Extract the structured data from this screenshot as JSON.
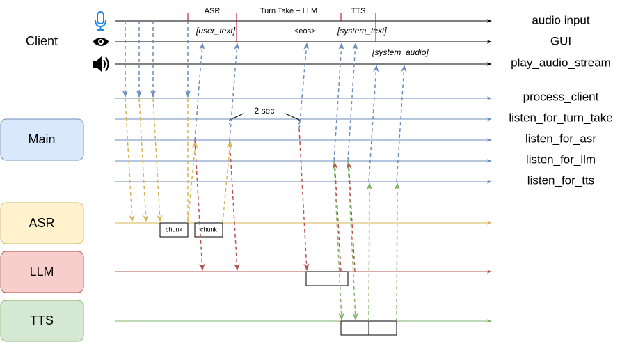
{
  "client_label": "Client",
  "boxes": [
    {
      "id": "main",
      "label": "Main",
      "fill": "#dae8fc",
      "stroke": "#6c8ebf"
    },
    {
      "id": "asr",
      "label": "ASR",
      "fill": "#fff2cc",
      "stroke": "#d6b656"
    },
    {
      "id": "llm",
      "label": "LLM",
      "fill": "#f8cecc",
      "stroke": "#b85450"
    },
    {
      "id": "tts",
      "label": "TTS",
      "fill": "#d5e8d4",
      "stroke": "#82b366"
    }
  ],
  "client_lines": [
    {
      "label": "audio input",
      "icon": "microphone-icon"
    },
    {
      "label": "GUI",
      "icon": "eye-icon"
    },
    {
      "label": "play_audio_stream",
      "icon": "speaker-icon"
    }
  ],
  "main_lines": [
    {
      "label": "process_client"
    },
    {
      "label": "listen_for_turn_take"
    },
    {
      "label": "listen_for_asr"
    },
    {
      "label": "listen_for_llm"
    },
    {
      "label": "listen_for_tts"
    }
  ],
  "phase_labels": {
    "asr": "ASR",
    "turn_take_llm": "Turn Take + LLM",
    "tts": "TTS"
  },
  "annotations": {
    "user_text": "[user_text]",
    "eos": "<eos>",
    "system_text": "[system_text]",
    "system_audio": "[system_audio]",
    "two_sec": "2 sec"
  },
  "chunk_labels": [
    "chunk",
    "chunk"
  ],
  "colors": {
    "blue": "#6c8ebf",
    "yellow": "#d6b656",
    "red": "#b85450",
    "green": "#82b366",
    "dark_red": "#a20025",
    "icon_blue": "#1e88e5"
  }
}
